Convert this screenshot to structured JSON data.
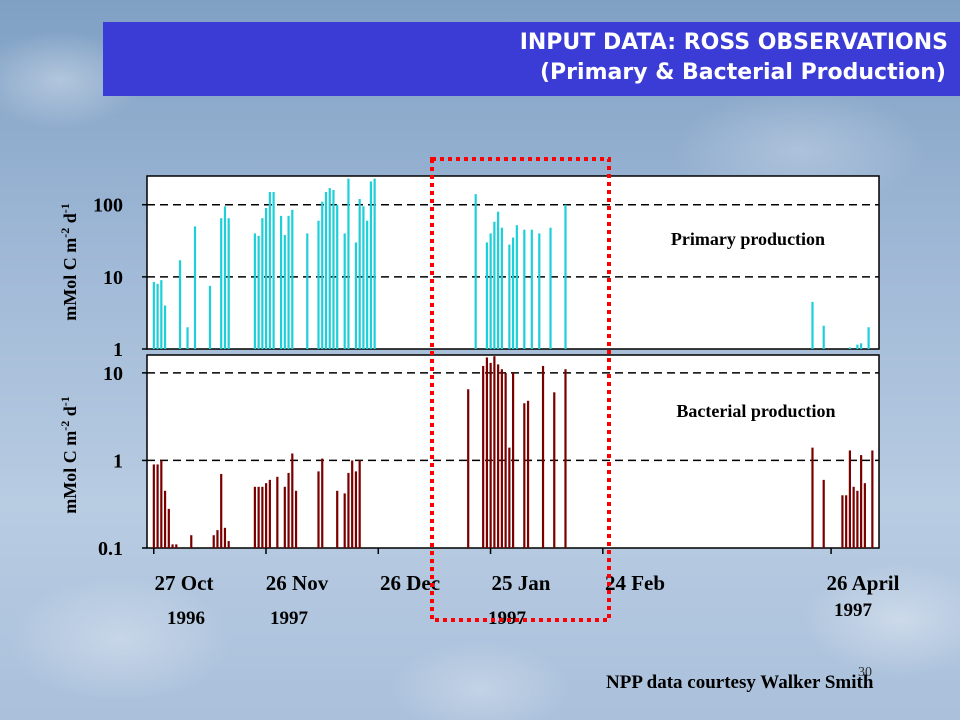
{
  "slide": {
    "title_line1": "INPUT DATA: ROSS OBSERVATIONS",
    "title_line2": "(Primary & Bacterial Production)",
    "footer": "NPP data courtesy Walker Smith",
    "page_number": "30"
  },
  "colors": {
    "primary_bar": "#1ccfd8",
    "bacterial_bar": "#7a0000",
    "title_band": "#3b3bd6",
    "highlight_box": "#ff0000"
  },
  "chart_data": [
    {
      "type": "bar",
      "y_scale": "log",
      "ylabel": "mMol C m-2 d-1",
      "ylim": [
        1,
        250
      ],
      "y_ticks": [
        "1",
        "10",
        "100"
      ],
      "grid": "dashed at 10 and 100",
      "annotation": "Primary production",
      "x_dates": [
        "27 Oct",
        "26 Nov",
        "26 Dec",
        "25 Jan",
        "24 Feb",
        "26 April"
      ],
      "x_years": [
        "1996",
        "1997",
        "1997",
        "1997"
      ],
      "bars": [
        {
          "x": 0,
          "y": 8.5
        },
        {
          "x": 1,
          "y": 8
        },
        {
          "x": 2,
          "y": 9
        },
        {
          "x": 3,
          "y": 4
        },
        {
          "x": 7,
          "y": 17
        },
        {
          "x": 9,
          "y": 2
        },
        {
          "x": 11,
          "y": 50
        },
        {
          "x": 15,
          "y": 7.5
        },
        {
          "x": 18,
          "y": 65
        },
        {
          "x": 19,
          "y": 95
        },
        {
          "x": 20,
          "y": 65
        },
        {
          "x": 27,
          "y": 40
        },
        {
          "x": 28,
          "y": 37
        },
        {
          "x": 29,
          "y": 65
        },
        {
          "x": 30,
          "y": 90
        },
        {
          "x": 31,
          "y": 150
        },
        {
          "x": 32,
          "y": 150
        },
        {
          "x": 34,
          "y": 70
        },
        {
          "x": 35,
          "y": 38
        },
        {
          "x": 36,
          "y": 70
        },
        {
          "x": 37,
          "y": 85
        },
        {
          "x": 41,
          "y": 40
        },
        {
          "x": 44,
          "y": 60
        },
        {
          "x": 45,
          "y": 110
        },
        {
          "x": 46,
          "y": 150
        },
        {
          "x": 47,
          "y": 170
        },
        {
          "x": 48,
          "y": 160
        },
        {
          "x": 49,
          "y": 100
        },
        {
          "x": 51,
          "y": 40
        },
        {
          "x": 52,
          "y": 230
        },
        {
          "x": 54,
          "y": 30
        },
        {
          "x": 55,
          "y": 120
        },
        {
          "x": 56,
          "y": 95
        },
        {
          "x": 57,
          "y": 60
        },
        {
          "x": 58,
          "y": 210
        },
        {
          "x": 59,
          "y": 230
        },
        {
          "x": 86,
          "y": 140
        },
        {
          "x": 89,
          "y": 30
        },
        {
          "x": 90,
          "y": 40
        },
        {
          "x": 91,
          "y": 58
        },
        {
          "x": 92,
          "y": 80
        },
        {
          "x": 93,
          "y": 48
        },
        {
          "x": 95,
          "y": 28
        },
        {
          "x": 96,
          "y": 35
        },
        {
          "x": 97,
          "y": 52
        },
        {
          "x": 99,
          "y": 45
        },
        {
          "x": 101,
          "y": 45
        },
        {
          "x": 103,
          "y": 40
        },
        {
          "x": 106,
          "y": 48
        },
        {
          "x": 110,
          "y": 100
        },
        {
          "x": 176,
          "y": 4.5
        },
        {
          "x": 179,
          "y": 2.1
        },
        {
          "x": 186,
          "y": 1.05
        },
        {
          "x": 188,
          "y": 1.15
        },
        {
          "x": 189,
          "y": 1.2
        },
        {
          "x": 191,
          "y": 2
        }
      ]
    },
    {
      "type": "bar",
      "y_scale": "log",
      "ylabel": "mMol C m-2 d-1",
      "ylim": [
        0.1,
        16
      ],
      "y_ticks": [
        "0.1",
        "1",
        "10"
      ],
      "grid": "dashed at 1 and 10",
      "annotation": "Bacterial production",
      "x_dates": [
        "27 Oct",
        "26 Nov",
        "26 Dec",
        "25 Jan",
        "24 Feb",
        "26 April"
      ],
      "x_years": [
        "1996",
        "1997",
        "1997",
        "1997"
      ],
      "bars": [
        {
          "x": 0,
          "y": 0.9
        },
        {
          "x": 1,
          "y": 0.9
        },
        {
          "x": 2,
          "y": 1.0
        },
        {
          "x": 3,
          "y": 0.45
        },
        {
          "x": 4,
          "y": 0.28
        },
        {
          "x": 5,
          "y": 0.11
        },
        {
          "x": 6,
          "y": 0.11
        },
        {
          "x": 10,
          "y": 0.14
        },
        {
          "x": 16,
          "y": 0.14
        },
        {
          "x": 17,
          "y": 0.16
        },
        {
          "x": 18,
          "y": 0.7
        },
        {
          "x": 19,
          "y": 0.17
        },
        {
          "x": 20,
          "y": 0.12
        },
        {
          "x": 27,
          "y": 0.5
        },
        {
          "x": 28,
          "y": 0.5
        },
        {
          "x": 29,
          "y": 0.5
        },
        {
          "x": 30,
          "y": 0.55
        },
        {
          "x": 31,
          "y": 0.6
        },
        {
          "x": 33,
          "y": 0.65
        },
        {
          "x": 35,
          "y": 0.5
        },
        {
          "x": 36,
          "y": 0.72
        },
        {
          "x": 37,
          "y": 1.2
        },
        {
          "x": 38,
          "y": 0.45
        },
        {
          "x": 44,
          "y": 0.75
        },
        {
          "x": 45,
          "y": 1.05
        },
        {
          "x": 49,
          "y": 0.45
        },
        {
          "x": 51,
          "y": 0.42
        },
        {
          "x": 52,
          "y": 0.72
        },
        {
          "x": 53,
          "y": 1.0
        },
        {
          "x": 54,
          "y": 0.75
        },
        {
          "x": 55,
          "y": 1.0
        },
        {
          "x": 84,
          "y": 6.5
        },
        {
          "x": 88,
          "y": 12
        },
        {
          "x": 89,
          "y": 15
        },
        {
          "x": 90,
          "y": 13
        },
        {
          "x": 91,
          "y": 15.5
        },
        {
          "x": 92,
          "y": 12.5
        },
        {
          "x": 93,
          "y": 11
        },
        {
          "x": 94,
          "y": 10
        },
        {
          "x": 95,
          "y": 1.4
        },
        {
          "x": 96,
          "y": 10
        },
        {
          "x": 99,
          "y": 4.5
        },
        {
          "x": 100,
          "y": 4.8
        },
        {
          "x": 104,
          "y": 12
        },
        {
          "x": 107,
          "y": 6
        },
        {
          "x": 110,
          "y": 11
        },
        {
          "x": 176,
          "y": 1.4
        },
        {
          "x": 179,
          "y": 0.6
        },
        {
          "x": 184,
          "y": 0.4
        },
        {
          "x": 185,
          "y": 0.4
        },
        {
          "x": 186,
          "y": 1.3
        },
        {
          "x": 187,
          "y": 0.5
        },
        {
          "x": 188,
          "y": 0.45
        },
        {
          "x": 189,
          "y": 1.15
        },
        {
          "x": 190,
          "y": 0.55
        },
        {
          "x": 192,
          "y": 1.3
        }
      ]
    }
  ]
}
